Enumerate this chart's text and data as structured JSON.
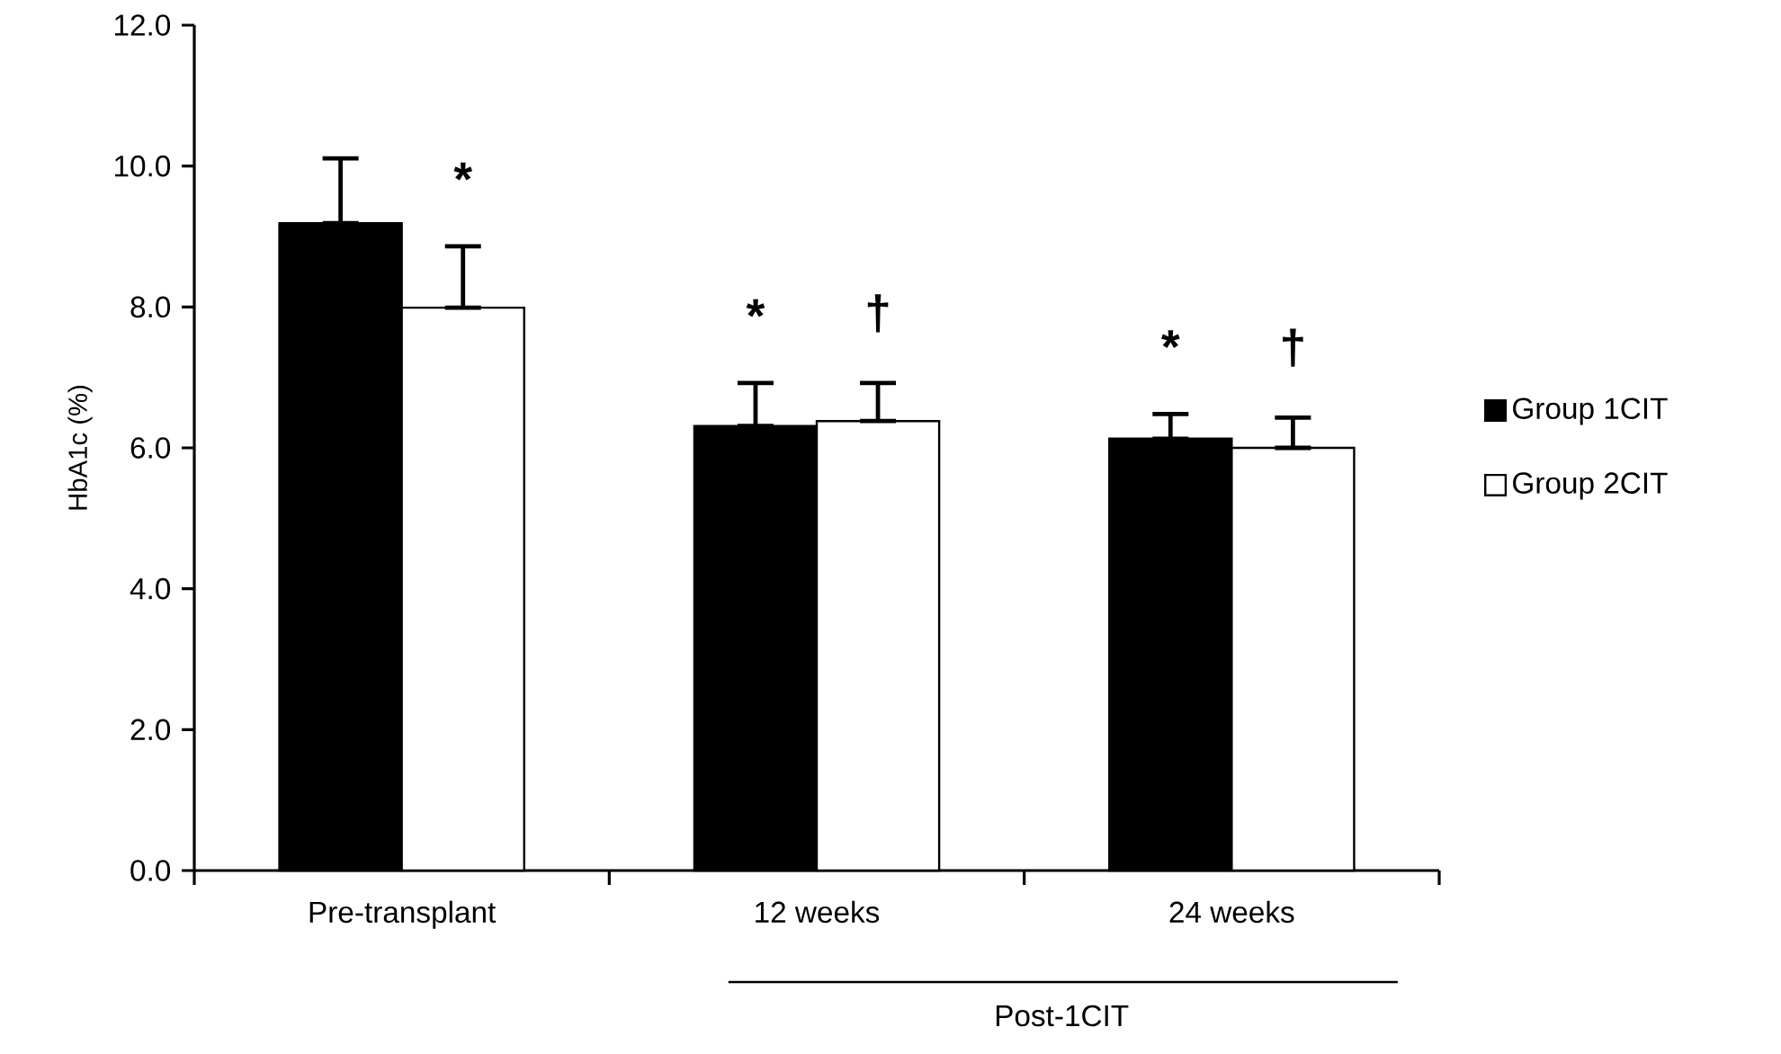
{
  "chart_data": {
    "type": "bar",
    "ylabel": "HbA1c (%)",
    "categories": [
      "Pre-transplant",
      "12 weeks",
      "24 weeks"
    ],
    "series": [
      {
        "name": "Group  1CIT",
        "color": "#000000",
        "values": [
          9.19,
          6.31,
          6.13
        ],
        "errors": [
          [
            9.19,
            10.11
          ],
          [
            6.31,
            6.92
          ],
          [
            6.13,
            6.48
          ]
        ],
        "value_labels": [
          null,
          "*",
          "*"
        ]
      },
      {
        "name": "Group  2CIT",
        "color": "#ffffff",
        "values": [
          7.99,
          6.38,
          6.0
        ],
        "errors": [
          [
            7.99,
            8.86
          ],
          [
            6.38,
            6.92
          ],
          [
            6.0,
            6.43
          ]
        ],
        "value_labels": [
          "*",
          "†",
          "†"
        ]
      }
    ],
    "ylim": [
      0,
      12
    ],
    "yticks": [
      {
        "value": 0,
        "label": "0.0"
      },
      {
        "value": 2,
        "label": "2.0"
      },
      {
        "value": 4,
        "label": "4.0"
      },
      {
        "value": 6,
        "label": "6.0"
      },
      {
        "value": 8,
        "label": "8.0"
      },
      {
        "value": 10,
        "label": "10.0"
      },
      {
        "value": 12,
        "label": "12.0"
      }
    ],
    "annotations": [
      "Post-1CIT"
    ],
    "legend": "right",
    "grid": false
  }
}
